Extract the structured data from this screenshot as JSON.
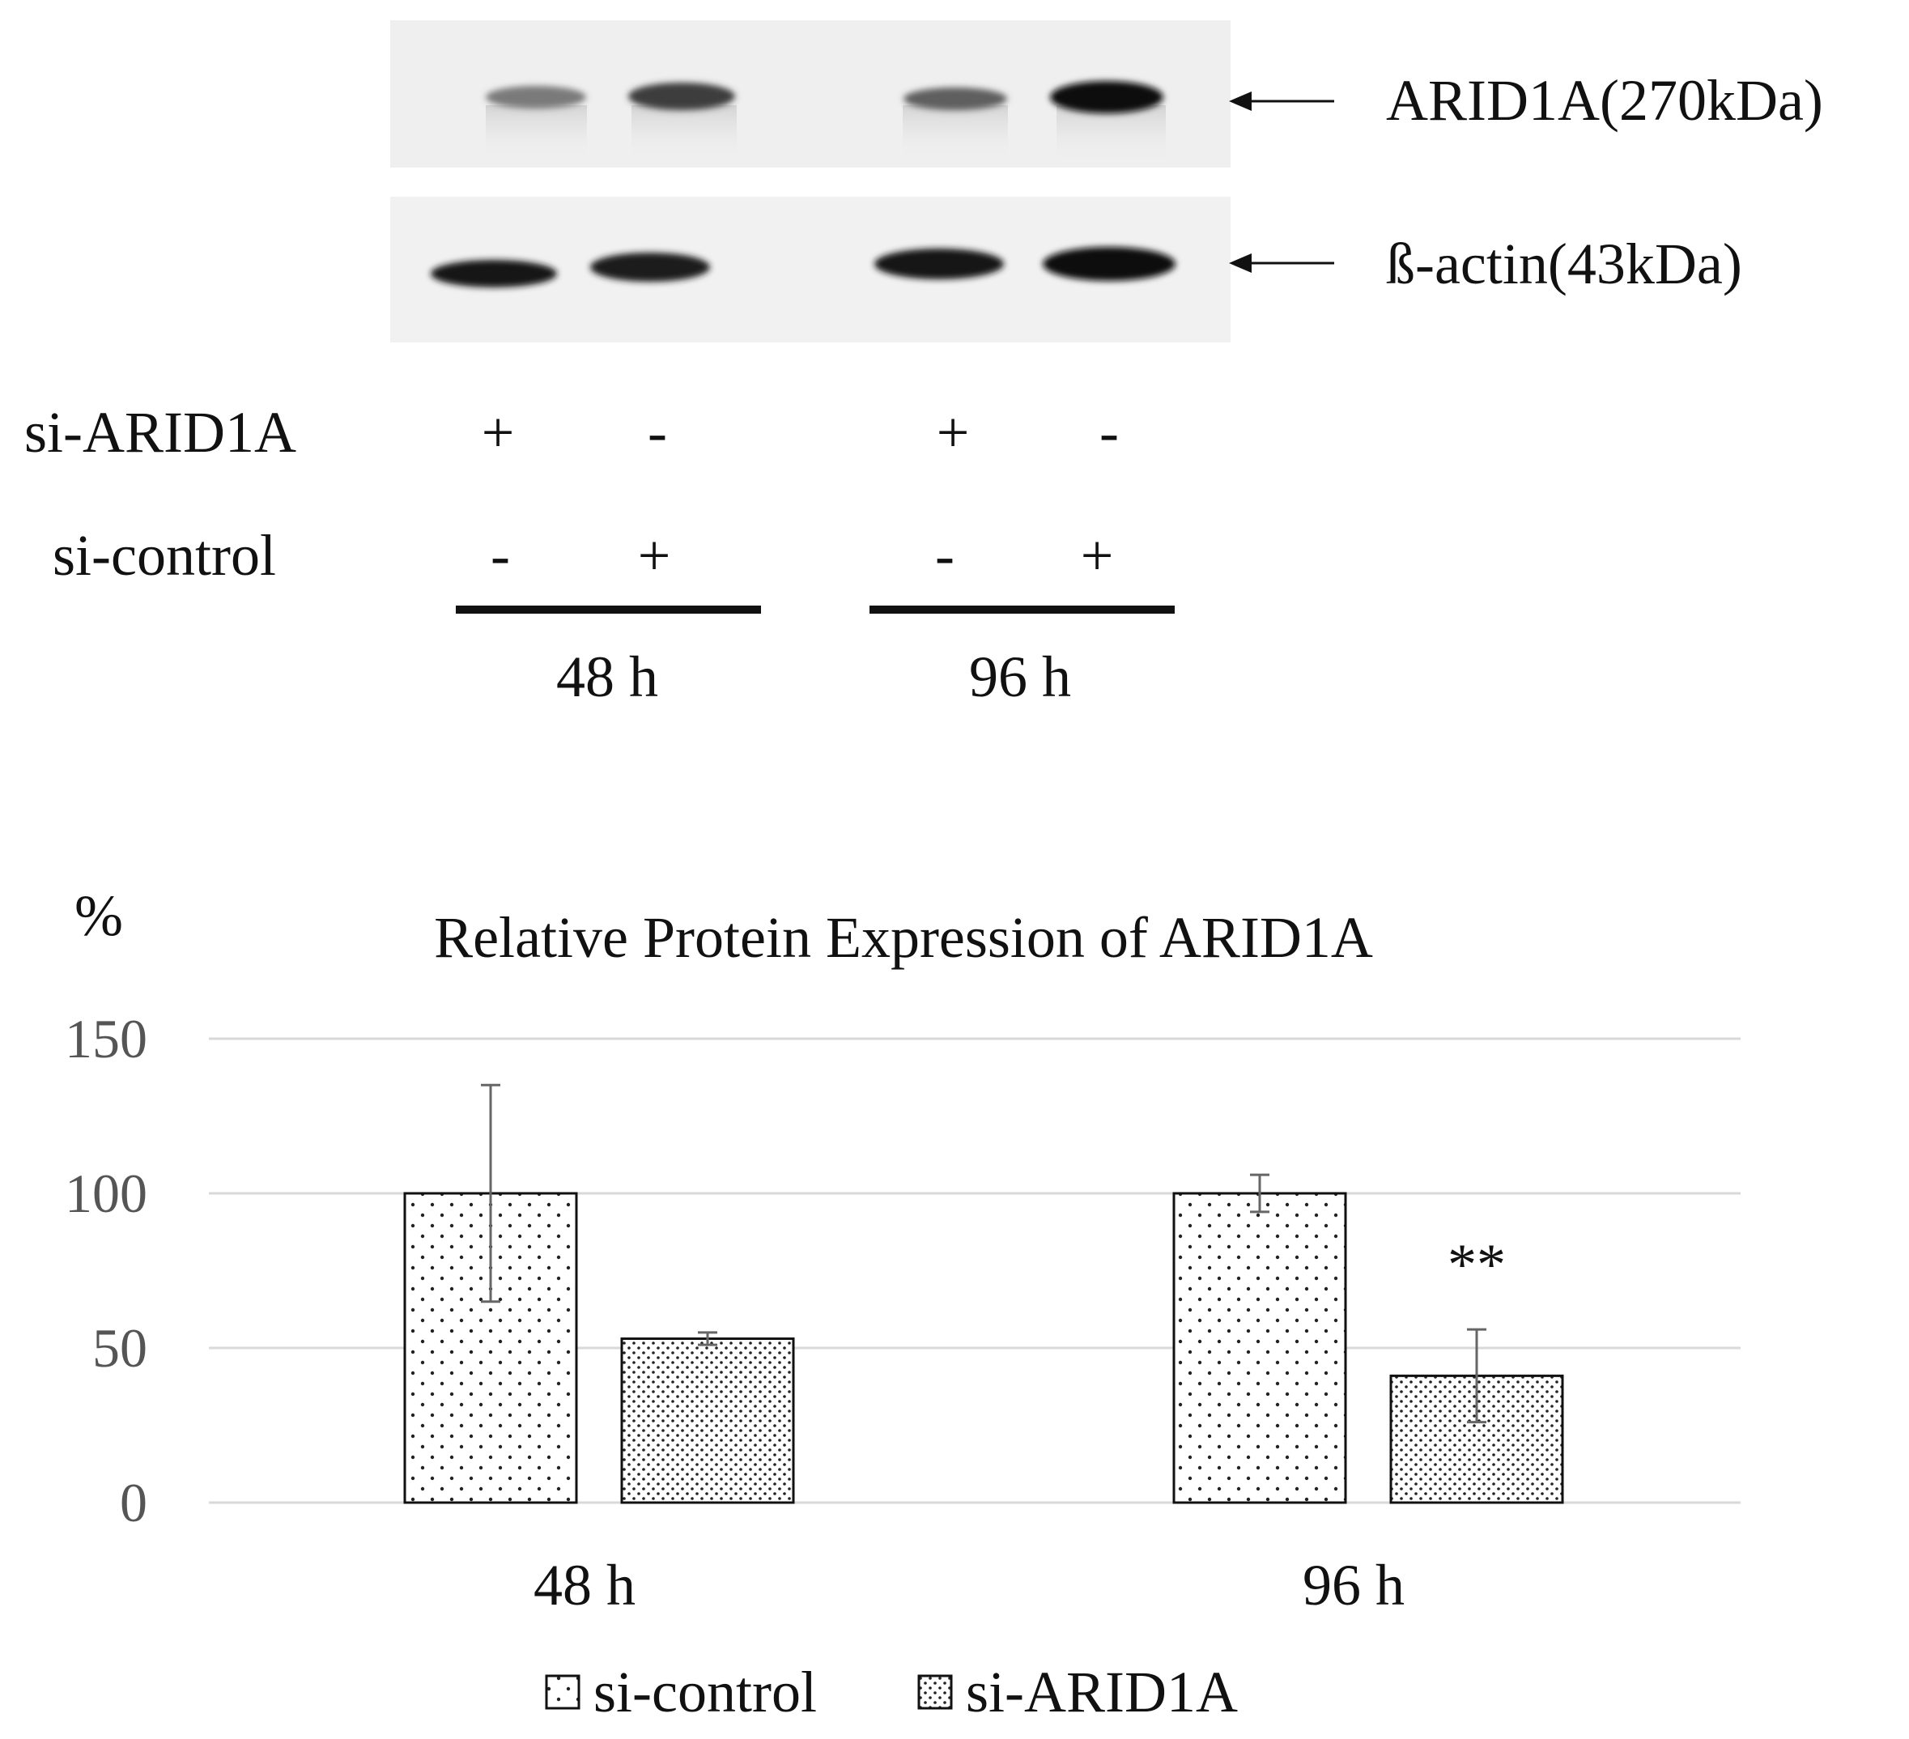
{
  "blot": {
    "band_labels": [
      "ARID1A(270kDa)",
      "ß-actin(43kDa)"
    ],
    "row_labels": [
      "si-ARID1A",
      "si-control"
    ],
    "si_arid1a_marks": [
      "+",
      "-",
      "+",
      "-"
    ],
    "si_control_marks": [
      "-",
      "+",
      "-",
      "+"
    ],
    "time_labels": [
      "48 h",
      "96 h"
    ]
  },
  "chart_data": {
    "type": "bar",
    "title": "Relative Protein Expression of ARID1A",
    "ylabel": "%",
    "xlabel": "",
    "categories": [
      "48 h",
      "96 h"
    ],
    "ylim": [
      0,
      150
    ],
    "yticks": [
      0,
      50,
      100,
      150
    ],
    "grid": true,
    "legend_position": "bottom",
    "series": [
      {
        "name": "si-control",
        "pattern": "sparse-dots",
        "values": [
          100,
          100
        ],
        "errors": [
          35,
          6
        ]
      },
      {
        "name": "si-ARID1A",
        "pattern": "dense-dots",
        "values": [
          53,
          41
        ],
        "errors": [
          2,
          15
        ]
      }
    ],
    "annotations": [
      {
        "text": "**",
        "category": "96 h",
        "series": "si-ARID1A"
      }
    ]
  },
  "colors": {
    "text": "#111111",
    "axis_text": "#555555",
    "grid": "#d9d9d9",
    "bar_edge": "#111111",
    "error_bar": "#666666"
  }
}
